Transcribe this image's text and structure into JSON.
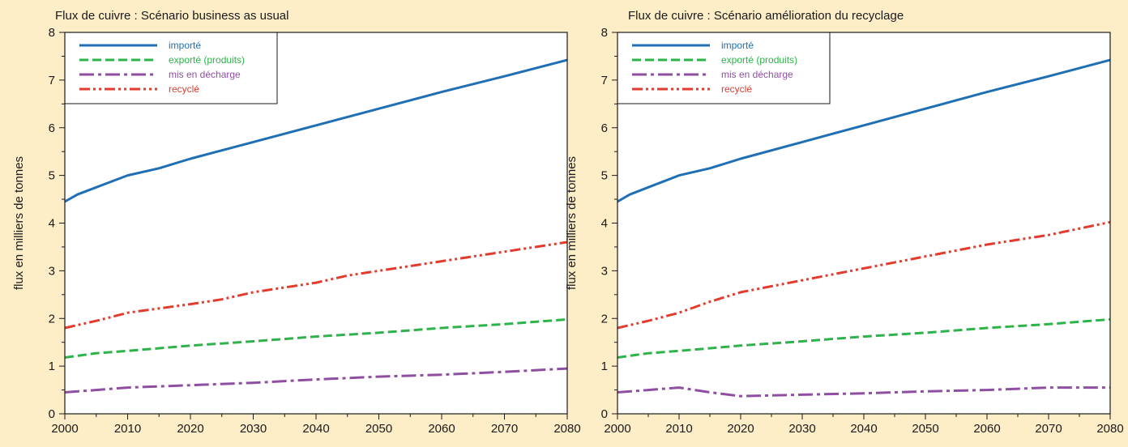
{
  "chart_data": [
    {
      "type": "line",
      "title": "Flux de cuivre : Scénario business as usual",
      "xlabel": "",
      "ylabel": "flux en milliers de tonnes",
      "xlim": [
        2000,
        2080
      ],
      "ylim": [
        0,
        8
      ],
      "xticks": [
        "2000",
        "2010",
        "2020",
        "2030",
        "2040",
        "2050",
        "2060",
        "2070",
        "2080"
      ],
      "yticks": [
        "0",
        "1",
        "2",
        "3",
        "4",
        "5",
        "6",
        "7",
        "8"
      ],
      "grid": false,
      "legend": "top-left",
      "series": [
        {
          "name": "importé",
          "color": "#1f6fb4",
          "dash": "solid",
          "x": [
            2000,
            2002,
            2005,
            2010,
            2015,
            2020,
            2030,
            2040,
            2050,
            2060,
            2070,
            2080
          ],
          "y": [
            4.45,
            4.6,
            4.75,
            5.0,
            5.15,
            5.35,
            5.7,
            6.05,
            6.4,
            6.75,
            7.08,
            7.42
          ]
        },
        {
          "name": "exporté (produits)",
          "color": "#2db34a",
          "dash": "dashed",
          "x": [
            2000,
            2005,
            2010,
            2020,
            2030,
            2040,
            2050,
            2060,
            2070,
            2080
          ],
          "y": [
            1.18,
            1.27,
            1.32,
            1.43,
            1.52,
            1.62,
            1.7,
            1.8,
            1.88,
            1.98
          ]
        },
        {
          "name": "mis en décharge",
          "color": "#8e4fa3",
          "dash": "dashdot",
          "x": [
            2000,
            2010,
            2020,
            2030,
            2040,
            2050,
            2060,
            2070,
            2080
          ],
          "y": [
            0.45,
            0.55,
            0.6,
            0.65,
            0.72,
            0.78,
            0.82,
            0.88,
            0.95
          ]
        },
        {
          "name": "recyclé",
          "color": "#e33b2e",
          "dash": "dashdotdot",
          "x": [
            2000,
            2005,
            2010,
            2020,
            2025,
            2030,
            2040,
            2045,
            2050,
            2060,
            2070,
            2080
          ],
          "y": [
            1.8,
            1.95,
            2.12,
            2.3,
            2.4,
            2.55,
            2.75,
            2.9,
            3.0,
            3.2,
            3.4,
            3.6
          ]
        }
      ]
    },
    {
      "type": "line",
      "title": "Flux de cuivre : Scénario amélioration du recyclage",
      "xlabel": "",
      "ylabel": "flux en milliers de tonnes",
      "xlim": [
        2000,
        2080
      ],
      "ylim": [
        0,
        8
      ],
      "xticks": [
        "2000",
        "2010",
        "2020",
        "2030",
        "2040",
        "2050",
        "2060",
        "2070",
        "2080"
      ],
      "yticks": [
        "0",
        "1",
        "2",
        "3",
        "4",
        "5",
        "6",
        "7",
        "8"
      ],
      "grid": false,
      "legend": "top-left",
      "series": [
        {
          "name": "importé",
          "color": "#1f6fb4",
          "dash": "solid",
          "x": [
            2000,
            2002,
            2005,
            2010,
            2015,
            2020,
            2030,
            2040,
            2050,
            2060,
            2070,
            2080
          ],
          "y": [
            4.45,
            4.6,
            4.75,
            5.0,
            5.15,
            5.35,
            5.7,
            6.05,
            6.4,
            6.75,
            7.08,
            7.42
          ]
        },
        {
          "name": "exporté (produits)",
          "color": "#2db34a",
          "dash": "dashed",
          "x": [
            2000,
            2005,
            2010,
            2020,
            2030,
            2040,
            2050,
            2060,
            2070,
            2080
          ],
          "y": [
            1.18,
            1.27,
            1.32,
            1.43,
            1.52,
            1.62,
            1.7,
            1.8,
            1.88,
            1.98
          ]
        },
        {
          "name": "mis en décharge",
          "color": "#8e4fa3",
          "dash": "dashdot",
          "x": [
            2000,
            2005,
            2010,
            2015,
            2020,
            2030,
            2040,
            2050,
            2060,
            2070,
            2080
          ],
          "y": [
            0.45,
            0.5,
            0.55,
            0.45,
            0.37,
            0.4,
            0.43,
            0.47,
            0.5,
            0.55,
            0.55
          ]
        },
        {
          "name": "recyclé",
          "color": "#e33b2e",
          "dash": "dashdotdot",
          "x": [
            2000,
            2005,
            2010,
            2015,
            2020,
            2030,
            2040,
            2050,
            2060,
            2070,
            2080
          ],
          "y": [
            1.8,
            1.95,
            2.12,
            2.35,
            2.55,
            2.8,
            3.05,
            3.3,
            3.55,
            3.75,
            4.02
          ]
        }
      ]
    }
  ]
}
